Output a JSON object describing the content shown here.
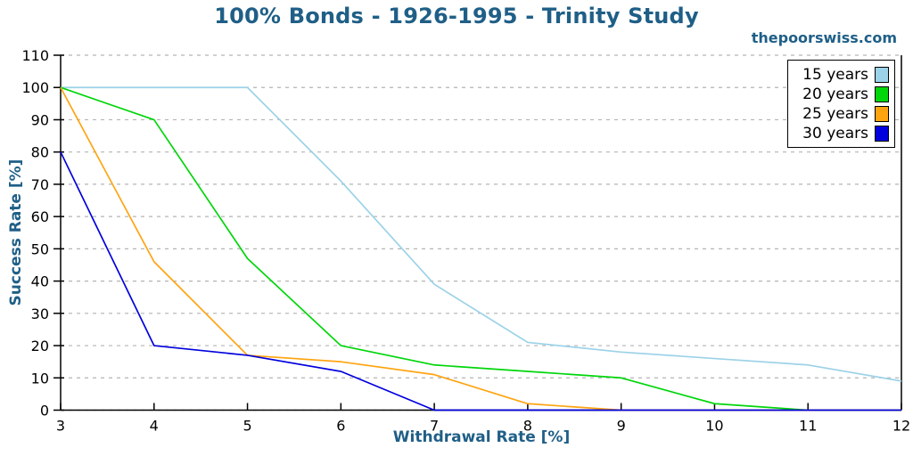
{
  "title": "100% Bonds - 1926-1995 - Trinity Study",
  "watermark": "thepoorswiss.com",
  "colors": {
    "heading": "#1f5f87",
    "axis": "#000000",
    "grid": "#b4b4b4",
    "background": "#ffffff",
    "legend_border": "#000000"
  },
  "chart_data": {
    "type": "line",
    "title": "100% Bonds - 1926-1995 - Trinity Study",
    "xlabel": "Withdrawal Rate [%]",
    "ylabel": "Success Rate [%]",
    "x": [
      3,
      4,
      5,
      6,
      7,
      8,
      9,
      10,
      11,
      12
    ],
    "xlim": [
      3,
      12
    ],
    "ylim": [
      0,
      110
    ],
    "xtick_step": 1,
    "ytick_step": 10,
    "grid": "horizontal dashed gridlines at every 10%",
    "legend_position": "top-right",
    "series": [
      {
        "name": "15 years",
        "color": "#9cd2e8",
        "values": [
          100,
          100,
          100,
          71,
          39,
          21,
          18,
          16,
          14,
          9
        ]
      },
      {
        "name": "20 years",
        "color": "#00d60a",
        "values": [
          100,
          90,
          47,
          20,
          14,
          12,
          10,
          2,
          0,
          0
        ]
      },
      {
        "name": "25 years",
        "color": "#ffa411",
        "values": [
          100,
          46,
          17,
          15,
          11,
          2,
          0,
          0,
          0,
          0
        ]
      },
      {
        "name": "30 years",
        "color": "#0000dd",
        "values": [
          80,
          20,
          17,
          12,
          0,
          0,
          0,
          0,
          0,
          0
        ]
      }
    ]
  }
}
